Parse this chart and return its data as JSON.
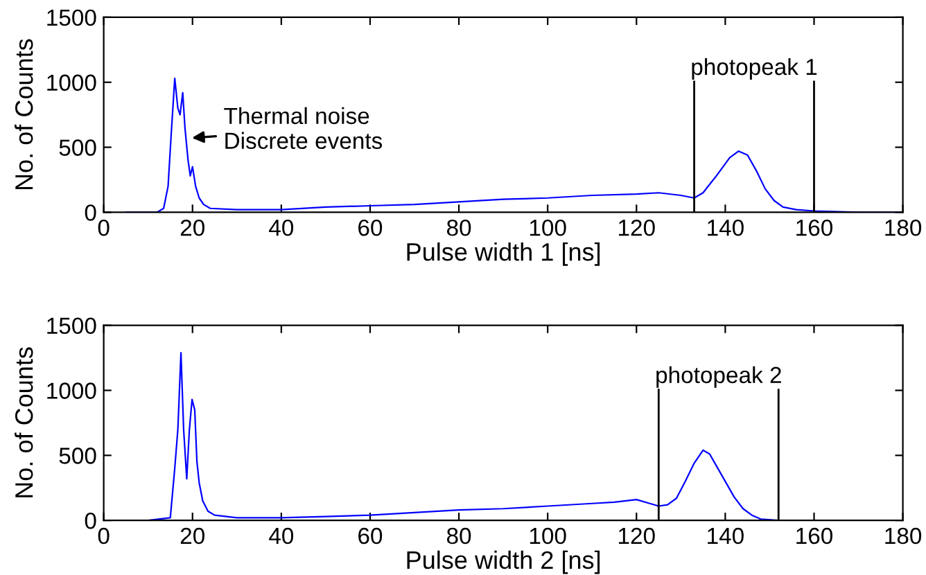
{
  "chart_data": [
    {
      "type": "line",
      "xlabel": "Pulse width 1 [ns]",
      "ylabel": "No. of Counts",
      "xlim": [
        0,
        180
      ],
      "ylim": [
        0,
        1500
      ],
      "xticks": [
        0,
        20,
        40,
        60,
        80,
        100,
        120,
        140,
        160,
        180
      ],
      "yticks": [
        0,
        500,
        1000,
        1500
      ],
      "grid": false,
      "series": [
        {
          "color": "#0000ff",
          "x": [
            5,
            12,
            13.5,
            14.5,
            15.2,
            16,
            16.7,
            17.2,
            17.8,
            18.3,
            19,
            19.5,
            20,
            20.7,
            21.5,
            22.5,
            24,
            30,
            40,
            50,
            60,
            70,
            80,
            90,
            100,
            110,
            120,
            125,
            130,
            133,
            135,
            138,
            141,
            143,
            145,
            147,
            149,
            151,
            153,
            156,
            160,
            170,
            180
          ],
          "values": [
            0,
            0,
            30,
            200,
            600,
            1030,
            800,
            750,
            920,
            650,
            400,
            280,
            350,
            200,
            110,
            60,
            30,
            20,
            20,
            40,
            50,
            60,
            80,
            100,
            110,
            130,
            140,
            150,
            130,
            110,
            150,
            280,
            420,
            470,
            440,
            320,
            180,
            90,
            40,
            20,
            10,
            0,
            0
          ]
        }
      ],
      "ref_lines": [
        {
          "axis": "x",
          "value": 133,
          "label": "photopeak 1",
          "color": "#000000"
        },
        {
          "axis": "x",
          "value": 160,
          "label": null,
          "color": "#000000"
        }
      ],
      "annotations": [
        {
          "text": "Thermal noise\nDiscrete events",
          "x": 19,
          "y": 570
        }
      ]
    },
    {
      "type": "line",
      "xlabel": "Pulse width 2 [ns]",
      "ylabel": "No. of Counts",
      "xlim": [
        0,
        180
      ],
      "ylim": [
        0,
        1500
      ],
      "xticks": [
        0,
        20,
        40,
        60,
        80,
        100,
        120,
        140,
        160,
        180
      ],
      "yticks": [
        0,
        500,
        1000,
        1500
      ],
      "grid": false,
      "series": [
        {
          "color": "#0000ff",
          "x": [
            0,
            10,
            15,
            16,
            16.7,
            17.4,
            18,
            18.7,
            19.3,
            19.9,
            20.5,
            21,
            21.5,
            22.3,
            23.5,
            25,
            30,
            40,
            50,
            60,
            70,
            80,
            90,
            100,
            110,
            115,
            120,
            123,
            125,
            127,
            129,
            131,
            133,
            135,
            136.5,
            138,
            140,
            142,
            144,
            146,
            148,
            152,
            165,
            180
          ],
          "values": [
            0,
            0,
            20,
            400,
            700,
            1290,
            700,
            320,
            700,
            930,
            850,
            450,
            290,
            150,
            70,
            40,
            20,
            20,
            30,
            40,
            60,
            80,
            90,
            110,
            130,
            140,
            160,
            130,
            110,
            120,
            170,
            300,
            440,
            540,
            510,
            420,
            300,
            180,
            90,
            40,
            10,
            0,
            0,
            0
          ]
        }
      ],
      "ref_lines": [
        {
          "axis": "x",
          "value": 125,
          "label": "photopeak 2",
          "color": "#000000"
        },
        {
          "axis": "x",
          "value": 152,
          "label": null,
          "color": "#000000"
        }
      ]
    }
  ]
}
